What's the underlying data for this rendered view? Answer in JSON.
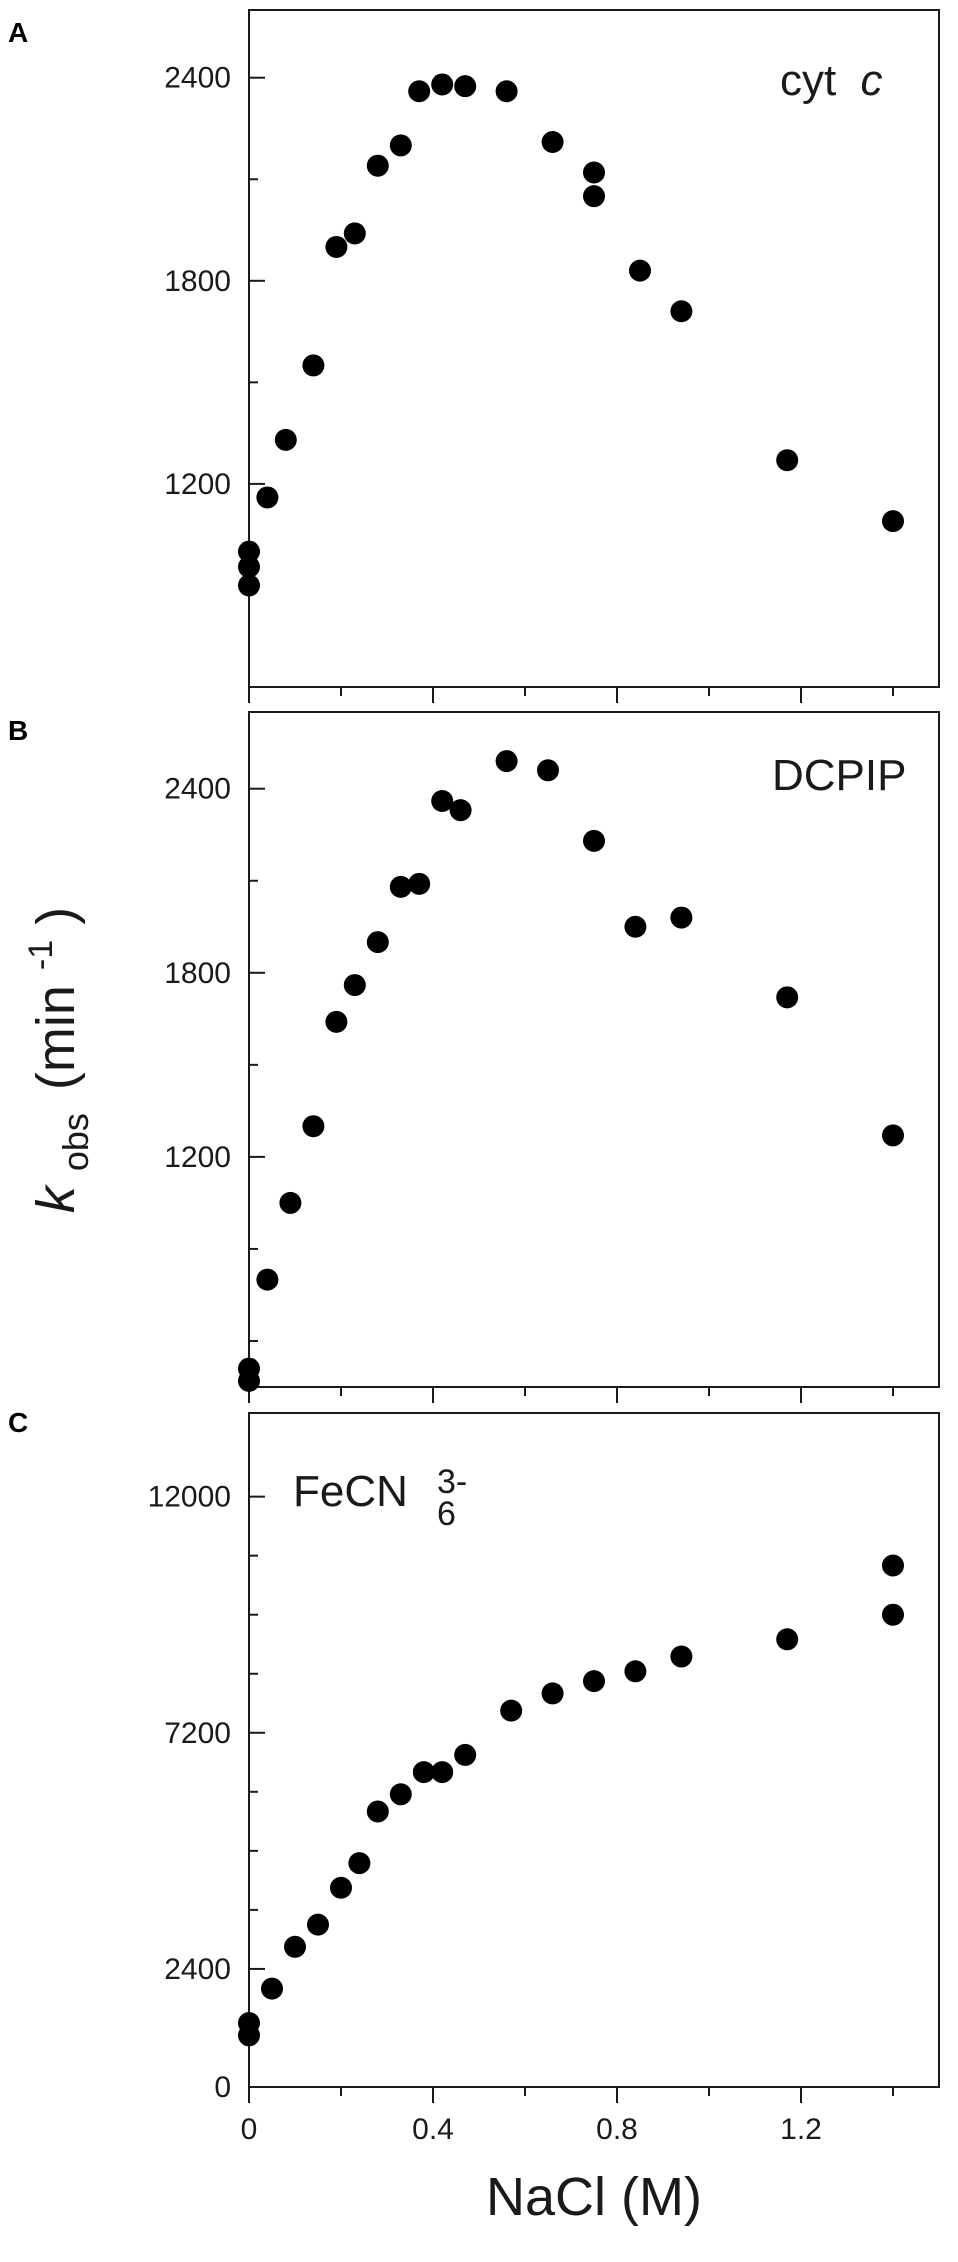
{
  "chart_data": [
    {
      "type": "scatter",
      "panel": "A",
      "label": "cyt",
      "label_italic": "c",
      "xlim": [
        0,
        1.5
      ],
      "ylim": [
        600,
        2600
      ],
      "yticks_major": [
        1200,
        1800,
        2400
      ],
      "yticks_minor": [
        900,
        1500,
        2100
      ],
      "color": "#000000",
      "x": [
        0,
        0,
        0,
        0.04,
        0.08,
        0.14,
        0.19,
        0.23,
        0.28,
        0.33,
        0.37,
        0.42,
        0.47,
        0.56,
        0.66,
        0.75,
        0.75,
        0.85,
        0.94,
        1.17,
        1.4
      ],
      "y": [
        1000,
        955,
        900,
        1160,
        1330,
        1550,
        1900,
        1940,
        2140,
        2200,
        2360,
        2380,
        2375,
        2360,
        2210,
        2120,
        2050,
        1830,
        1710,
        1270,
        1090
      ]
    },
    {
      "type": "scatter",
      "panel": "B",
      "label": "DCPIP",
      "xlim": [
        0,
        1.5
      ],
      "ylim": [
        450,
        2650
      ],
      "yticks_major": [
        1200,
        1800,
        2400
      ],
      "yticks_minor": [
        600,
        900,
        1500,
        2100
      ],
      "color": "#000000",
      "x": [
        0,
        0,
        0.04,
        0.09,
        0.14,
        0.19,
        0.23,
        0.28,
        0.33,
        0.37,
        0.42,
        0.46,
        0.56,
        0.65,
        0.75,
        0.84,
        0.94,
        1.17,
        1.4
      ],
      "y": [
        510,
        470,
        800,
        1050,
        1300,
        1640,
        1760,
        1900,
        2080,
        2090,
        2360,
        2330,
        2490,
        2460,
        2230,
        1950,
        1980,
        1720,
        1270
      ]
    },
    {
      "type": "scatter",
      "panel": "C",
      "label": "FeCN",
      "label_sub": "6",
      "label_sup": "3-",
      "xlim": [
        0,
        1.5
      ],
      "xticks": [
        0,
        0.4,
        0.8,
        1.2
      ],
      "xtick_labels": [
        "0",
        "0.4",
        "0.8",
        "1.2"
      ],
      "xticks_minor": [
        0.2,
        0.6,
        1.0,
        1.4
      ],
      "ylim": [
        0,
        13700
      ],
      "yticks_major": [
        0,
        2400,
        7200,
        12000
      ],
      "yticks_major_labels": [
        "0",
        "2400",
        "7200",
        "12000"
      ],
      "yticks_minor": [
        1200,
        3600,
        4800,
        6000,
        8400,
        9600,
        10800
      ],
      "color": "#000000",
      "x": [
        0,
        0,
        0.05,
        0.1,
        0.15,
        0.2,
        0.24,
        0.28,
        0.33,
        0.38,
        0.42,
        0.47,
        0.57,
        0.66,
        0.75,
        0.84,
        0.94,
        1.17,
        1.4,
        1.4
      ],
      "y": [
        1300,
        1050,
        2000,
        2850,
        3300,
        4050,
        4550,
        5600,
        5950,
        6400,
        6400,
        6750,
        7650,
        8000,
        8250,
        8450,
        8750,
        9100,
        9600,
        10600
      ]
    }
  ],
  "ylabel": "k",
  "ylabel_sub": "obs",
  "ylabel_unit": "(min",
  "ylabel_sup": "-1",
  "ylabel_close": ")",
  "xlabel": "NaCl (M)",
  "panel_letters": [
    "A",
    "B",
    "C"
  ]
}
